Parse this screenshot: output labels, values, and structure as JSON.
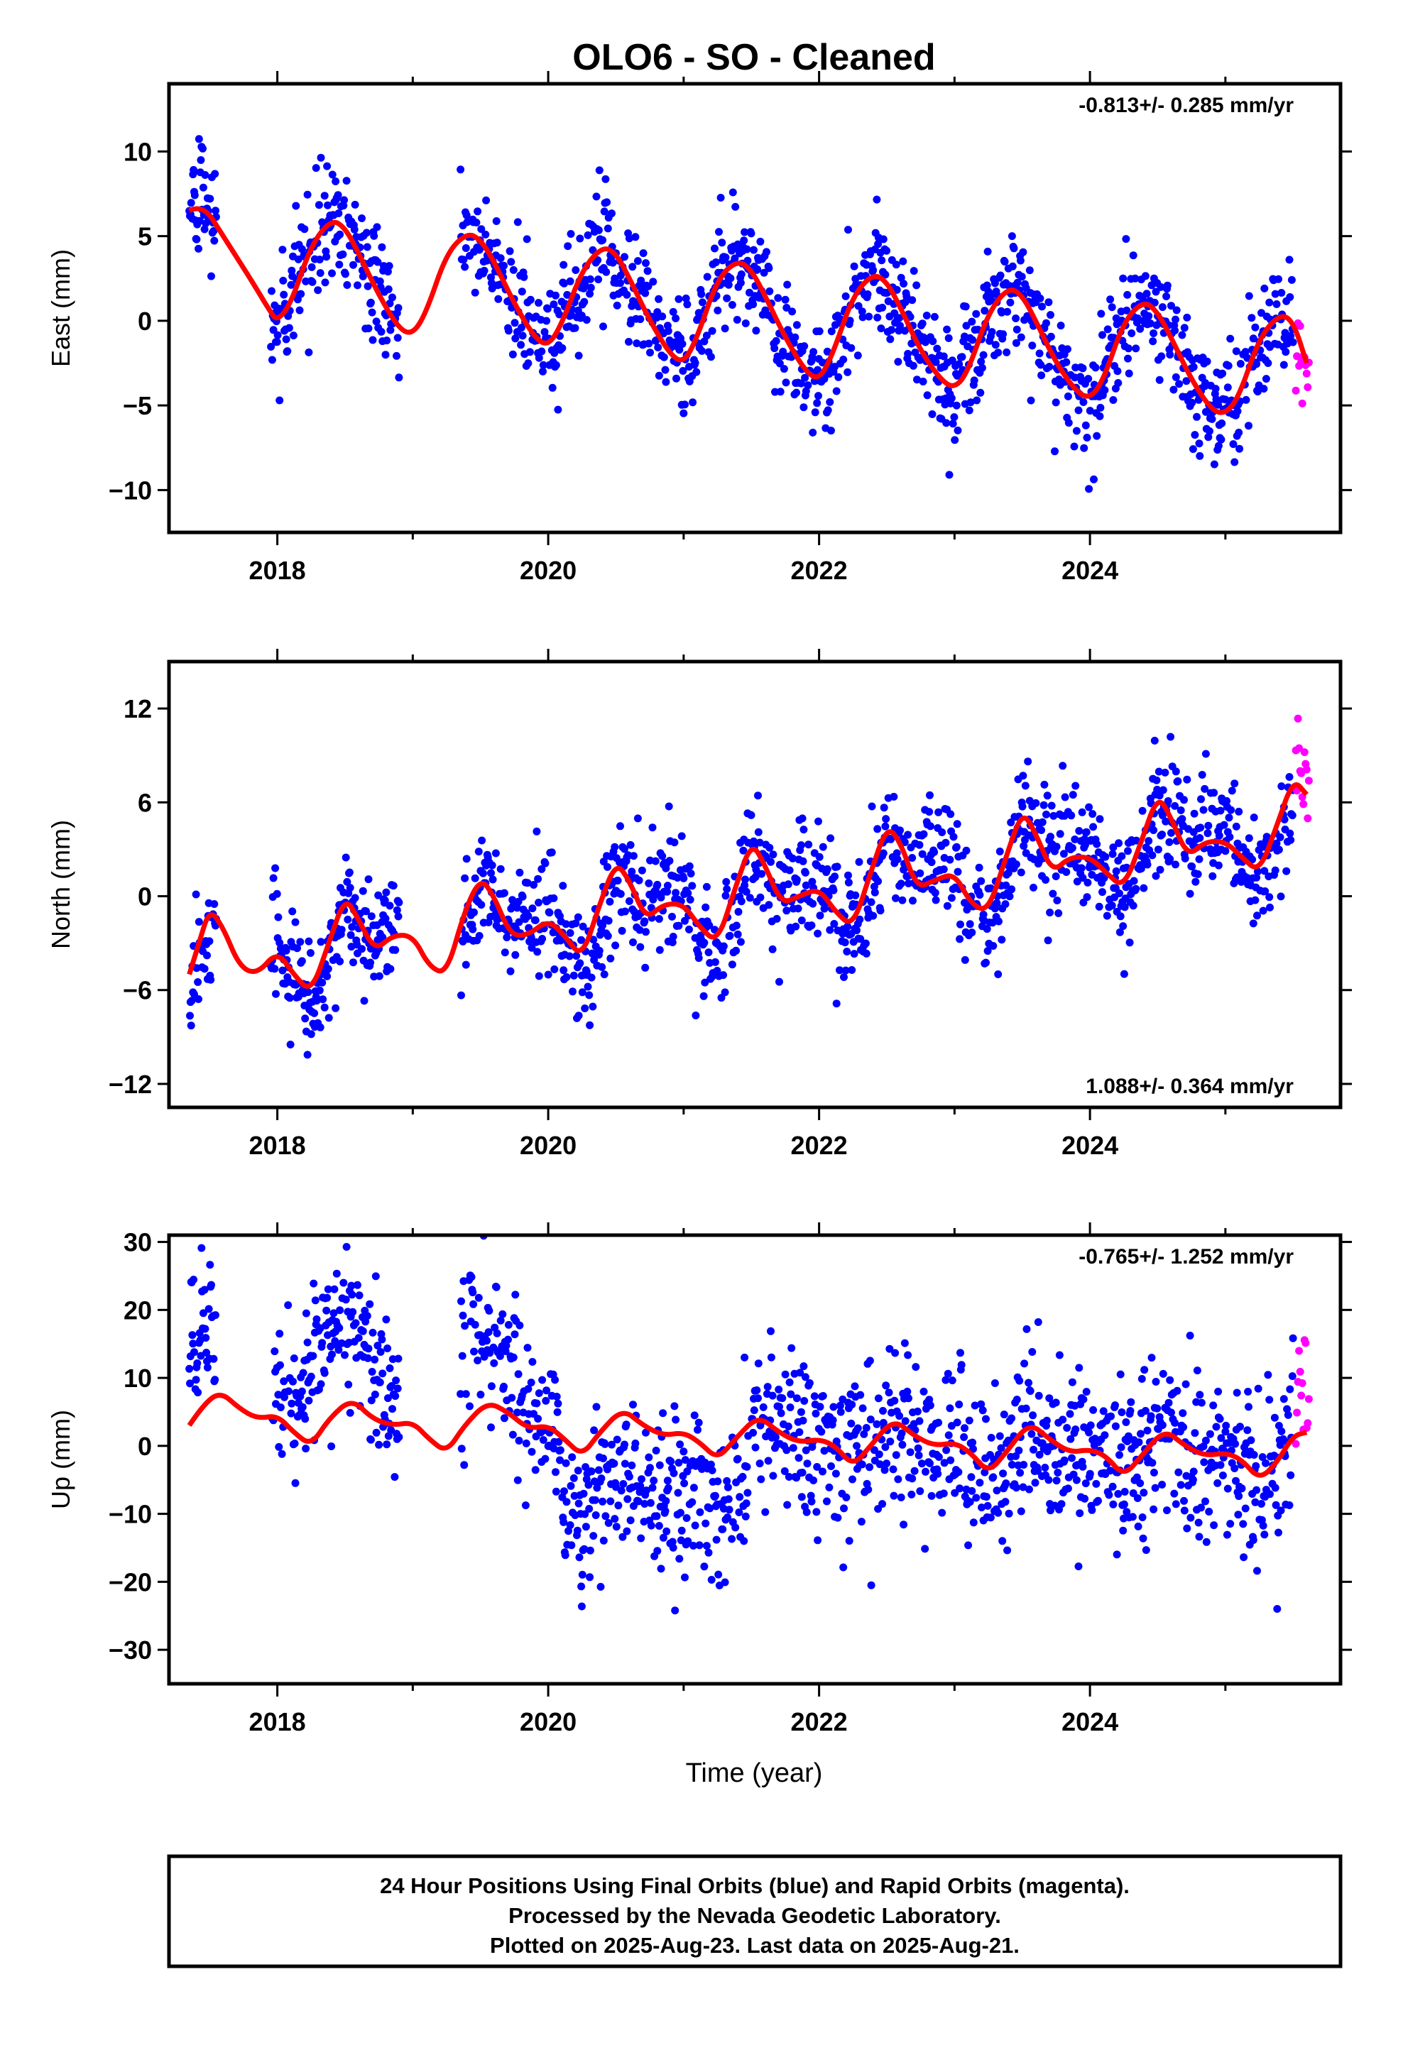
{
  "figure": {
    "title": "OLO6  - SO - Cleaned",
    "xlabel": "Time (year)",
    "footer": [
      "24 Hour Positions Using Final Orbits (blue) and Rapid Orbits (magenta).",
      "Processed by the Nevada Geodetic Laboratory.",
      "Plotted on 2025-Aug-23. Last data on 2025-Aug-21."
    ],
    "colors": {
      "final": "#0000ff",
      "rapid": "#ff00ff",
      "model": "#ff0000"
    }
  },
  "chart_data": [
    {
      "type": "scatter",
      "ylabel": "East (mm)",
      "rate_label": "-0.813+/- 0.285 mm/yr",
      "rate_position": "top-right",
      "xlim": [
        2017.2,
        2025.85
      ],
      "ylim": [
        -12.5,
        14.0
      ],
      "xticks": [
        2018,
        2020,
        2022,
        2024
      ],
      "yticks": [
        -10,
        -5,
        0,
        5,
        10
      ],
      "xtick_labels": [
        "2018",
        "2020",
        "2022",
        "2024"
      ],
      "ytick_labels": [
        "−10",
        "−5",
        "0",
        "5",
        "10"
      ],
      "series": [
        {
          "name": "Final Orbits (blue)",
          "values": []
        },
        {
          "name": "Rapid Orbits (magenta)",
          "values": []
        },
        {
          "name": "Model",
          "values": []
        }
      ],
      "model": {
        "x": [
          2017.35,
          2017.45,
          2017.6,
          2017.8,
          2017.95,
          2018.0,
          2018.1,
          2018.25,
          2018.4,
          2018.5,
          2018.6,
          2018.75,
          2018.9,
          2019.0,
          2019.1,
          2019.25,
          2019.4,
          2019.5,
          2019.6,
          2019.75,
          2019.9,
          2020.0,
          2020.1,
          2020.25,
          2020.4,
          2020.5,
          2020.6,
          2020.75,
          2020.9,
          2021.0,
          2021.1,
          2021.25,
          2021.4,
          2021.5,
          2021.6,
          2021.75,
          2021.9,
          2022.0,
          2022.1,
          2022.25,
          2022.4,
          2022.5,
          2022.6,
          2022.75,
          2022.9,
          2023.0,
          2023.1,
          2023.25,
          2023.4,
          2023.5,
          2023.6,
          2023.75,
          2023.9,
          2024.0,
          2024.1,
          2024.25,
          2024.4,
          2024.5,
          2024.6,
          2024.75,
          2024.9,
          2025.0,
          2025.1,
          2025.25,
          2025.4,
          2025.5,
          2025.6
        ],
        "y": [
          6.5,
          6.9,
          5.0,
          2.5,
          0.5,
          0.0,
          1.0,
          4.5,
          6.0,
          5.5,
          4.0,
          1.5,
          -0.5,
          -0.8,
          0.5,
          4.0,
          5.2,
          4.8,
          3.5,
          1.0,
          -1.0,
          -1.5,
          -0.2,
          3.0,
          4.4,
          4.0,
          2.5,
          0.0,
          -2.0,
          -2.5,
          -1.0,
          2.5,
          3.6,
          3.0,
          1.5,
          -1.0,
          -3.0,
          -3.5,
          -2.0,
          1.5,
          2.8,
          2.3,
          0.8,
          -1.8,
          -3.5,
          -4.0,
          -3.0,
          0.5,
          2.0,
          1.5,
          0.0,
          -2.5,
          -4.2,
          -4.6,
          -3.5,
          0.0,
          1.2,
          0.5,
          -1.0,
          -3.5,
          -5.3,
          -5.5,
          -4.5,
          -1.0,
          0.4,
          0.0,
          -2.5
        ]
      }
    },
    {
      "type": "scatter",
      "ylabel": "North (mm)",
      "rate_label": "1.088+/- 0.364 mm/yr",
      "rate_position": "bottom-right",
      "xlim": [
        2017.2,
        2025.85
      ],
      "ylim": [
        -13.5,
        15.0
      ],
      "xticks": [
        2018,
        2020,
        2022,
        2024
      ],
      "yticks": [
        -12,
        -6,
        0,
        6,
        12
      ],
      "xtick_labels": [
        "2018",
        "2020",
        "2022",
        "2024"
      ],
      "ytick_labels": [
        "−12",
        "−6",
        "0",
        "6",
        "12"
      ],
      "series": [
        {
          "name": "Final Orbits (blue)",
          "values": []
        },
        {
          "name": "Rapid Orbits (magenta)",
          "values": []
        },
        {
          "name": "Model",
          "values": []
        }
      ],
      "model": {
        "x": [
          2017.35,
          2017.42,
          2017.5,
          2017.6,
          2017.72,
          2017.85,
          2018.0,
          2018.12,
          2018.25,
          2018.38,
          2018.5,
          2018.6,
          2018.72,
          2018.85,
          2019.0,
          2019.12,
          2019.25,
          2019.38,
          2019.5,
          2019.6,
          2019.72,
          2019.85,
          2020.0,
          2020.12,
          2020.25,
          2020.38,
          2020.5,
          2020.6,
          2020.72,
          2020.85,
          2021.0,
          2021.12,
          2021.25,
          2021.38,
          2021.5,
          2021.6,
          2021.72,
          2021.85,
          2022.0,
          2022.12,
          2022.25,
          2022.38,
          2022.5,
          2022.6,
          2022.72,
          2022.85,
          2023.0,
          2023.12,
          2023.25,
          2023.38,
          2023.5,
          2023.6,
          2023.72,
          2023.85,
          2024.0,
          2024.12,
          2024.25,
          2024.38,
          2024.5,
          2024.6,
          2024.72,
          2024.85,
          2025.0,
          2025.12,
          2025.25,
          2025.38,
          2025.5,
          2025.6
        ],
        "y": [
          -5.0,
          -3.0,
          -0.8,
          -2.0,
          -4.5,
          -5.0,
          -3.5,
          -5.0,
          -6.2,
          -3.0,
          0.0,
          -1.5,
          -3.5,
          -2.5,
          -2.5,
          -4.5,
          -5.0,
          -1.0,
          1.2,
          0.0,
          -2.5,
          -2.5,
          -1.5,
          -2.5,
          -4.0,
          -0.5,
          2.2,
          1.0,
          -1.5,
          -0.5,
          -0.5,
          -2.0,
          -3.0,
          0.5,
          3.5,
          2.0,
          -0.5,
          0.0,
          0.5,
          -1.0,
          -2.0,
          1.5,
          4.5,
          3.5,
          0.5,
          1.0,
          1.5,
          -0.5,
          -1.0,
          2.5,
          5.5,
          4.0,
          1.5,
          2.5,
          2.5,
          1.5,
          0.5,
          3.5,
          6.5,
          5.0,
          2.5,
          3.5,
          3.5,
          2.5,
          1.5,
          4.5,
          7.5,
          6.5
        ]
      }
    },
    {
      "type": "scatter",
      "ylabel": "Up (mm)",
      "rate_label": "-0.765+/- 1.252 mm/yr",
      "rate_position": "top-right",
      "xlim": [
        2017.2,
        2025.85
      ],
      "ylim": [
        -35.0,
        31.0
      ],
      "xticks": [
        2018,
        2020,
        2022,
        2024
      ],
      "yticks": [
        -30,
        -20,
        -10,
        0,
        10,
        20,
        30
      ],
      "xtick_labels": [
        "2018",
        "2020",
        "2022",
        "2024"
      ],
      "ytick_labels": [
        "−30",
        "−20",
        "−10",
        "0",
        "10",
        "20",
        "30"
      ],
      "series": [
        {
          "name": "Final Orbits (blue)",
          "values": []
        },
        {
          "name": "Rapid Orbits (magenta)",
          "values": []
        },
        {
          "name": "Model",
          "values": []
        }
      ],
      "model": {
        "x": [
          2017.35,
          2017.45,
          2017.58,
          2017.72,
          2017.85,
          2018.0,
          2018.12,
          2018.25,
          2018.38,
          2018.55,
          2018.7,
          2018.85,
          2019.0,
          2019.12,
          2019.25,
          2019.38,
          2019.55,
          2019.7,
          2019.85,
          2020.0,
          2020.12,
          2020.25,
          2020.38,
          2020.55,
          2020.7,
          2020.85,
          2021.0,
          2021.12,
          2021.25,
          2021.38,
          2021.55,
          2021.7,
          2021.85,
          2022.0,
          2022.12,
          2022.25,
          2022.38,
          2022.55,
          2022.7,
          2022.85,
          2023.0,
          2023.12,
          2023.25,
          2023.38,
          2023.55,
          2023.7,
          2023.85,
          2024.0,
          2024.12,
          2024.25,
          2024.38,
          2024.55,
          2024.7,
          2024.85,
          2025.0,
          2025.12,
          2025.25,
          2025.38,
          2025.5,
          2025.6
        ],
        "y": [
          3.0,
          6.0,
          8.0,
          5.5,
          4.0,
          4.5,
          2.0,
          0.0,
          4.0,
          7.0,
          4.0,
          3.0,
          3.5,
          1.0,
          -1.0,
          3.0,
          6.5,
          5.0,
          2.5,
          3.0,
          1.0,
          -1.5,
          2.0,
          5.5,
          3.0,
          1.5,
          2.0,
          0.5,
          -2.0,
          1.0,
          4.5,
          2.0,
          0.5,
          1.0,
          0.0,
          -3.0,
          0.0,
          4.0,
          1.5,
          0.0,
          0.5,
          -1.0,
          -4.0,
          -1.0,
          3.5,
          1.0,
          -1.0,
          -0.5,
          -1.5,
          -4.5,
          -1.5,
          2.5,
          0.0,
          -1.5,
          -1.0,
          -2.0,
          -5.0,
          -2.5,
          1.5,
          2.0
        ]
      }
    }
  ]
}
